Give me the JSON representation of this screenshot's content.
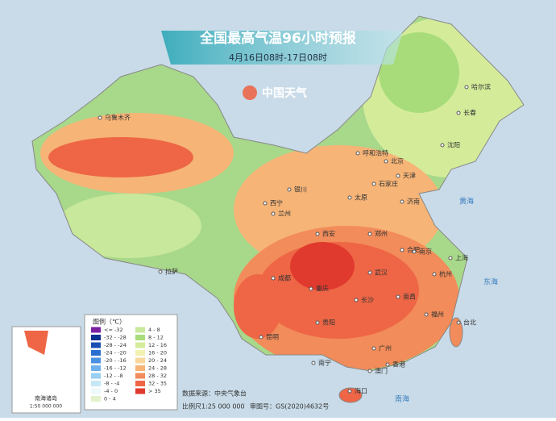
{
  "header": {
    "title": "全国最高气温96小时预报",
    "subtitle": "4月16日08时-17日08时"
  },
  "logo": "中国天气",
  "legend": {
    "title": "图例（℃）",
    "items": [
      {
        "label": "<= -32",
        "color": "#7b1fa2"
      },
      {
        "label": "-32 - -28",
        "color": "#0d2f8f"
      },
      {
        "label": "-28 - -24",
        "color": "#1b4fb5"
      },
      {
        "label": "-24 - -20",
        "color": "#2a6fd0"
      },
      {
        "label": "-20 - -16",
        "color": "#4a90e2"
      },
      {
        "label": "-16 - -12",
        "color": "#6fb0ea"
      },
      {
        "label": "-12 - -8",
        "color": "#98cff2"
      },
      {
        "label": "-8 - -4",
        "color": "#c6e7f7"
      },
      {
        "label": "-4 - 0",
        "color": "#eef8fb"
      },
      {
        "label": "0 - 4",
        "color": "#e2f2cc"
      },
      {
        "label": "4 - 8",
        "color": "#c8e89c"
      },
      {
        "label": "8 - 12",
        "color": "#a8dc7a"
      },
      {
        "label": "12 - 16",
        "color": "#d4ec9a"
      },
      {
        "label": "16 - 20",
        "color": "#f3f1b0"
      },
      {
        "label": "20 - 24",
        "color": "#f9d79a"
      },
      {
        "label": "24 - 28",
        "color": "#f6b477"
      },
      {
        "label": "28 - 32",
        "color": "#f28c5a"
      },
      {
        "label": "32 - 35",
        "color": "#ee6646"
      },
      {
        "label": "> 35",
        "color": "#e03a2e"
      }
    ]
  },
  "cities": [
    "乌鲁木齐",
    "哈尔滨",
    "长春",
    "沈阳",
    "呼和浩特",
    "北京",
    "天津",
    "石家庄",
    "太原",
    "银川",
    "西宁",
    "兰州",
    "济南",
    "郑州",
    "西安",
    "拉萨",
    "成都",
    "重庆",
    "武汉",
    "合肥",
    "南京",
    "上海",
    "杭州",
    "南昌",
    "长沙",
    "贵阳",
    "昆明",
    "南宁",
    "广州",
    "福州",
    "台北",
    "香港",
    "澳门",
    "海口"
  ],
  "seas": [
    "黄海",
    "东海",
    "南海"
  ],
  "inset": {
    "label": "南海诸岛",
    "scale": "1:50 000 000"
  },
  "footer": {
    "source": "数据来源：中央气象台",
    "scale": "比例尺1:25 000 000",
    "approval": "审图号：GS(2020)4632号"
  }
}
